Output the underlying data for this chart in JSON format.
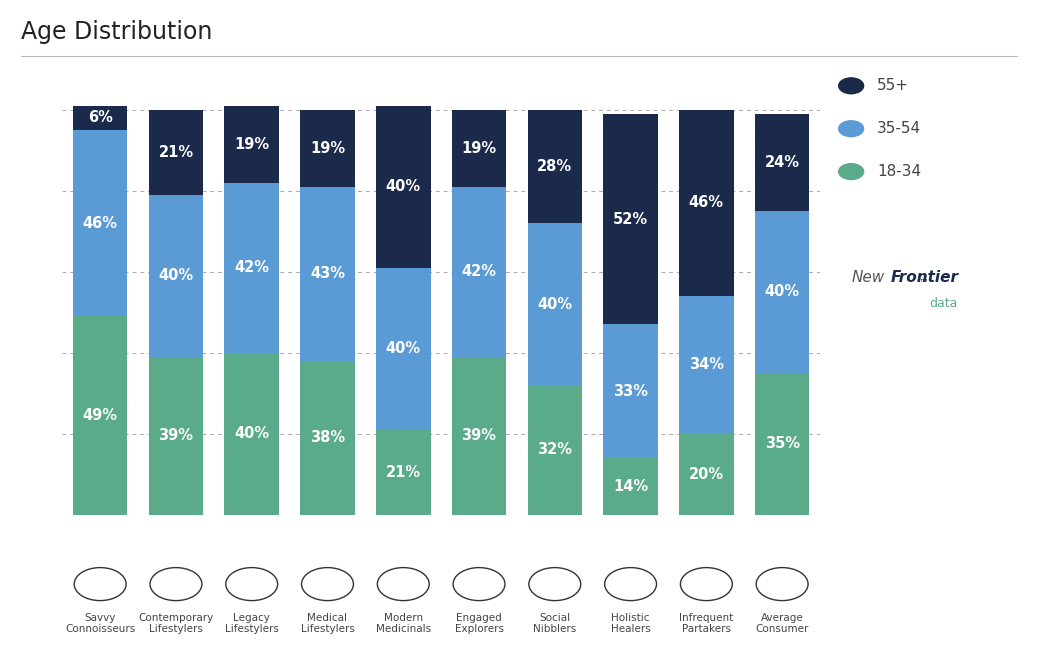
{
  "title": "Age Distribution",
  "categories": [
    "Savvy\nConnoisseurs",
    "Contemporary\nLifestylers",
    "Legacy\nLifestylers",
    "Medical\nLifestylers",
    "Modern\nMedicinals",
    "Engaged\nExplorers",
    "Social\nNibblers",
    "Holistic\nHealers",
    "Infrequent\nPartakers",
    "Average\nConsumer"
  ],
  "age_18_34": [
    49,
    39,
    40,
    38,
    21,
    39,
    32,
    14,
    20,
    35
  ],
  "age_35_54": [
    46,
    40,
    42,
    43,
    40,
    42,
    40,
    33,
    34,
    40
  ],
  "age_55_plus": [
    6,
    21,
    19,
    19,
    40,
    19,
    28,
    52,
    46,
    24
  ],
  "color_18_34": "#5aab8a",
  "color_35_54": "#5b9bd5",
  "color_55_plus": "#1b2a4a",
  "title_fontsize": 17,
  "label_fontsize": 10.5,
  "tick_fontsize": 9,
  "legend_dot_colors": [
    "#1b2a4a",
    "#5b9bd5",
    "#5aab8a"
  ],
  "legend_labels": [
    "55+",
    "35-54",
    "18-34"
  ],
  "dashed_line_color": "#555555",
  "bar_width": 0.72,
  "figsize": [
    10.38,
    6.6
  ],
  "dpi": 100
}
